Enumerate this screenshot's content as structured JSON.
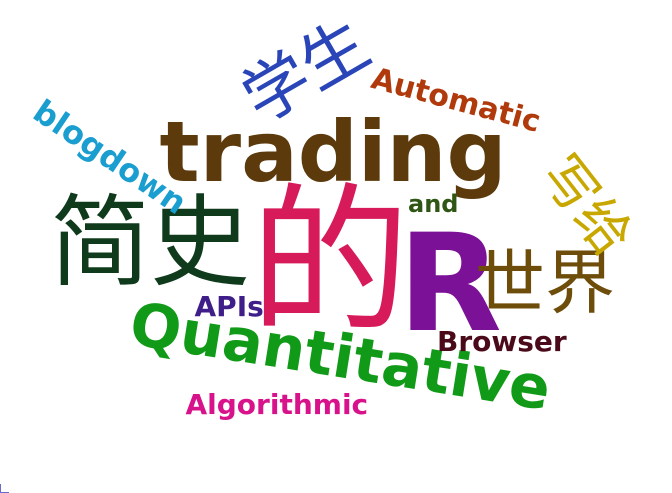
{
  "words": [
    {
      "id": "trading",
      "text": "trading",
      "color": "#5c3a0c"
    },
    {
      "id": "quantitative",
      "text": "Quantitative",
      "color": "#119a18"
    },
    {
      "id": "de",
      "text": "的",
      "color": "#d61a5a"
    },
    {
      "id": "r",
      "text": "R",
      "color": "#7b1196"
    },
    {
      "id": "jianshi",
      "text": "简史",
      "color": "#0f3a1c"
    },
    {
      "id": "shijie",
      "text": "世界",
      "color": "#6e4c0a"
    },
    {
      "id": "xuesheng",
      "text": "学生",
      "color": "#2a45b8"
    },
    {
      "id": "xiegei",
      "text": "写给",
      "color": "#c8a800"
    },
    {
      "id": "automatic",
      "text": "Automatic",
      "color": "#b03a0c"
    },
    {
      "id": "blogdown",
      "text": "blogdown",
      "color": "#1a9ed0"
    },
    {
      "id": "and",
      "text": "and",
      "color": "#2f5614"
    },
    {
      "id": "apis",
      "text": "APIs",
      "color": "#3f1e8a"
    },
    {
      "id": "browser",
      "text": "Browser",
      "color": "#4a0a1a"
    },
    {
      "id": "algorithmic",
      "text": "Algorithmic",
      "color": "#d8128a"
    }
  ]
}
